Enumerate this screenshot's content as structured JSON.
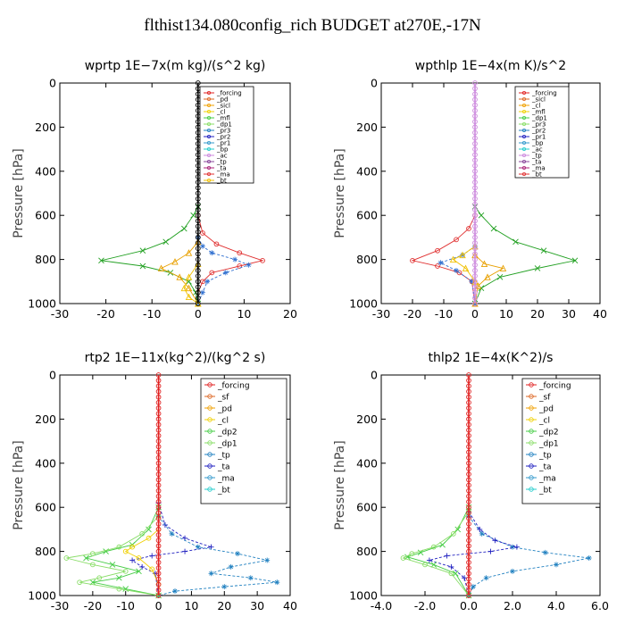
{
  "title": "flthist134.080config_rich  BUDGET at270E,-17N",
  "chart_data": [
    {
      "type": "line",
      "title": "wprtp   1E−7x(m kg)/(s^2 kg)",
      "ylabel": "Pressure [hPa]",
      "xlim": [
        -30,
        20
      ],
      "ylim": [
        1000,
        0
      ],
      "xticks": [
        "-30",
        "-20",
        "-10",
        "0",
        "10",
        "20"
      ],
      "yticks": [
        "0",
        "200",
        "400",
        "600",
        "800",
        "1000"
      ],
      "legend": [
        "_forcing",
        "_pd",
        "_sicl",
        "_cl",
        "_mfl",
        "_dp1",
        "_pr3",
        "_pr2",
        "_pr1",
        "_bp",
        "_ac",
        "_tp",
        "_ta",
        "_ma",
        "_bt"
      ],
      "series": [
        {
          "name": "_bp",
          "color": "#22a022",
          "marker": "x",
          "points": [
            [
              0,
              560
            ],
            [
              -1,
              600
            ],
            [
              -3,
              660
            ],
            [
              -7,
              720
            ],
            [
              -12,
              760
            ],
            [
              -21,
              805
            ],
            [
              -12,
              830
            ],
            [
              -6,
              860
            ],
            [
              -2,
              900
            ],
            [
              -0.5,
              950
            ],
            [
              0,
              1000
            ]
          ]
        },
        {
          "name": "_dp1",
          "color": "#e03030",
          "marker": "circle",
          "points": [
            [
              0,
              600
            ],
            [
              1,
              680
            ],
            [
              4,
              730
            ],
            [
              9,
              770
            ],
            [
              14,
              805
            ],
            [
              9,
              830
            ],
            [
              3,
              860
            ],
            [
              1,
              900
            ],
            [
              0,
              950
            ],
            [
              0,
              1000
            ]
          ]
        },
        {
          "name": "_tp",
          "color": "#3070d0",
          "marker": "star",
          "points": [
            [
              0,
              700
            ],
            [
              1,
              740
            ],
            [
              3,
              770
            ],
            [
              8,
              800
            ],
            [
              11,
              825
            ],
            [
              6,
              860
            ],
            [
              2,
              900
            ],
            [
              1,
              950
            ],
            [
              0,
              1000
            ]
          ]
        },
        {
          "name": "_pr2",
          "color": "#e8a000",
          "marker": "triangle",
          "points": [
            [
              0,
              720
            ],
            [
              -2,
              770
            ],
            [
              -5,
              810
            ],
            [
              -8,
              840
            ],
            [
              -4,
              880
            ],
            [
              -2,
              930
            ],
            [
              0,
              1000
            ]
          ]
        },
        {
          "name": "_cl",
          "color": "#f0c000",
          "marker": "triangle",
          "points": [
            [
              0,
              820
            ],
            [
              -2,
              880
            ],
            [
              -3,
              930
            ],
            [
              -2,
              970
            ],
            [
              0,
              1000
            ]
          ]
        },
        {
          "name": "_forcing",
          "color": "#000000",
          "marker": "circle",
          "points": [
            [
              0,
              0
            ],
            [
              0,
              1000
            ]
          ]
        }
      ]
    },
    {
      "type": "line",
      "title": "wpthlp   1E−4x(m K)/s^2",
      "ylabel": "Pressure [hPa]",
      "xlim": [
        -30,
        40
      ],
      "ylim": [
        1000,
        0
      ],
      "xticks": [
        "-30",
        "-20",
        "-10",
        "0",
        "10",
        "20",
        "30",
        "40"
      ],
      "yticks": [
        "0",
        "200",
        "400",
        "600",
        "800",
        "1000"
      ],
      "legend": [
        "_forcing",
        "_sicl",
        "_cl",
        "_mfl",
        "_dp1",
        "_pr3",
        "_pr2",
        "_pr1",
        "_bp",
        "_ac",
        "_tp",
        "_ta",
        "_ma",
        "_bt"
      ],
      "series": [
        {
          "name": "_bp",
          "color": "#22a022",
          "marker": "x",
          "points": [
            [
              0,
              560
            ],
            [
              2,
              600
            ],
            [
              6,
              660
            ],
            [
              13,
              720
            ],
            [
              22,
              760
            ],
            [
              32,
              805
            ],
            [
              20,
              840
            ],
            [
              8,
              880
            ],
            [
              2,
              930
            ],
            [
              0,
              1000
            ]
          ]
        },
        {
          "name": "_dp1",
          "color": "#e03030",
          "marker": "circle",
          "points": [
            [
              0,
              600
            ],
            [
              -2,
              660
            ],
            [
              -6,
              710
            ],
            [
              -12,
              760
            ],
            [
              -20,
              805
            ],
            [
              -12,
              830
            ],
            [
              -5,
              860
            ],
            [
              -1,
              900
            ],
            [
              0,
              1000
            ]
          ]
        },
        {
          "name": "_tp",
          "color": "#3070d0",
          "marker": "star",
          "points": [
            [
              0,
              740
            ],
            [
              -4,
              780
            ],
            [
              -11,
              815
            ],
            [
              -6,
              850
            ],
            [
              -1,
              900
            ],
            [
              0,
              1000
            ]
          ]
        },
        {
          "name": "_pr2",
          "color": "#e8a000",
          "marker": "triangle",
          "points": [
            [
              0,
              780
            ],
            [
              3,
              820
            ],
            [
              9,
              840
            ],
            [
              4,
              880
            ],
            [
              1,
              920
            ],
            [
              0,
              1000
            ]
          ]
        },
        {
          "name": "_cl",
          "color": "#f0c000",
          "marker": "triangle",
          "points": [
            [
              0,
              740
            ],
            [
              -4,
              780
            ],
            [
              -7,
              800
            ],
            [
              -3,
              840
            ],
            [
              0,
              900
            ]
          ]
        },
        {
          "name": "_forcing",
          "color": "#cc88dd",
          "marker": "circle",
          "points": [
            [
              0,
              0
            ],
            [
              0,
              1000
            ]
          ]
        }
      ]
    },
    {
      "type": "line",
      "title": "rtp2   1E−11x(kg^2)/(kg^2 s)",
      "ylabel": "Pressure [hPa]",
      "xlim": [
        -30,
        40
      ],
      "ylim": [
        1000,
        0
      ],
      "xticks": [
        "-30",
        "-20",
        "-10",
        "0",
        "10",
        "20",
        "30",
        "40"
      ],
      "yticks": [
        "0",
        "200",
        "400",
        "600",
        "800",
        "1000"
      ],
      "legend": [
        "_forcing",
        "_sf",
        "_pd",
        "_cl",
        "_dp2",
        "_dp1",
        "_tp",
        "_ta",
        "_ma",
        "_bt"
      ],
      "series": [
        {
          "name": "_ta",
          "color": "#2020c0",
          "marker": "plus",
          "points": [
            [
              0,
              580
            ],
            [
              2,
              680
            ],
            [
              8,
              740
            ],
            [
              16,
              780
            ],
            [
              8,
              800
            ],
            [
              -2,
              820
            ],
            [
              -8,
              840
            ],
            [
              -5,
              870
            ],
            [
              -1,
              900
            ],
            [
              0,
              1000
            ]
          ]
        },
        {
          "name": "_tp",
          "color": "#2080c0",
          "marker": "star",
          "points": [
            [
              0,
              640
            ],
            [
              4,
              720
            ],
            [
              12,
              780
            ],
            [
              24,
              810
            ],
            [
              33,
              840
            ],
            [
              22,
              870
            ],
            [
              16,
              900
            ],
            [
              28,
              920
            ],
            [
              36,
              940
            ],
            [
              20,
              960
            ],
            [
              5,
              980
            ],
            [
              0,
              1000
            ]
          ]
        },
        {
          "name": "_dp1",
          "color": "#44cc44",
          "marker": "x",
          "points": [
            [
              0,
              600
            ],
            [
              -3,
              700
            ],
            [
              -8,
              770
            ],
            [
              -16,
              800
            ],
            [
              -22,
              830
            ],
            [
              -14,
              860
            ],
            [
              -6,
              890
            ],
            [
              -12,
              920
            ],
            [
              -20,
              940
            ],
            [
              -10,
              970
            ],
            [
              0,
              1000
            ]
          ]
        },
        {
          "name": "_dp2",
          "color": "#88dd66",
          "marker": "circle",
          "points": [
            [
              0,
              640
            ],
            [
              -5,
              720
            ],
            [
              -12,
              780
            ],
            [
              -20,
              810
            ],
            [
              -28,
              830
            ],
            [
              -20,
              860
            ],
            [
              -10,
              890
            ],
            [
              -18,
              920
            ],
            [
              -24,
              940
            ],
            [
              -12,
              970
            ],
            [
              0,
              1000
            ]
          ]
        },
        {
          "name": "_cl",
          "color": "#f0d000",
          "marker": "circle",
          "points": [
            [
              0,
              700
            ],
            [
              -3,
              740
            ],
            [
              -8,
              780
            ],
            [
              -10,
              800
            ],
            [
              -6,
              830
            ],
            [
              -2,
              880
            ],
            [
              0,
              950
            ]
          ]
        },
        {
          "name": "_forcing",
          "color": "#e02020",
          "marker": "circle",
          "points": [
            [
              0,
              0
            ],
            [
              0,
              1000
            ]
          ]
        }
      ]
    },
    {
      "type": "line",
      "title": "thlp2   1E−4x(K^2)/s",
      "ylabel": "Pressure [hPa]",
      "xlim": [
        -4,
        6
      ],
      "ylim": [
        1000,
        0
      ],
      "xticks": [
        "-4.0",
        "-2.0",
        "0.0",
        "2.0",
        "4.0",
        "6.0"
      ],
      "yticks": [
        "0",
        "200",
        "400",
        "600",
        "800",
        "1000"
      ],
      "legend": [
        "_forcing",
        "_sf",
        "_pd",
        "_cl",
        "_dp2",
        "_dp1",
        "_tp",
        "_ta",
        "_ma",
        "_bt"
      ],
      "series": [
        {
          "name": "_tp",
          "color": "#2080c0",
          "marker": "star",
          "points": [
            [
              0,
              640
            ],
            [
              0.6,
              720
            ],
            [
              2,
              780
            ],
            [
              3.5,
              805
            ],
            [
              5.5,
              830
            ],
            [
              4,
              860
            ],
            [
              2,
              890
            ],
            [
              0.8,
              920
            ],
            [
              0.2,
              960
            ],
            [
              0,
              1000
            ]
          ]
        },
        {
          "name": "_ta",
          "color": "#2020c0",
          "marker": "plus",
          "points": [
            [
              0,
              620
            ],
            [
              0.5,
              700
            ],
            [
              1.2,
              750
            ],
            [
              2.2,
              780
            ],
            [
              1,
              800
            ],
            [
              -1,
              820
            ],
            [
              -1.8,
              840
            ],
            [
              -0.8,
              870
            ],
            [
              -0.2,
              920
            ],
            [
              0,
              1000
            ]
          ]
        },
        {
          "name": "_dp1",
          "color": "#44cc44",
          "marker": "x",
          "points": [
            [
              0,
              600
            ],
            [
              -0.5,
              700
            ],
            [
              -1.2,
              770
            ],
            [
              -2.2,
              805
            ],
            [
              -2.8,
              825
            ],
            [
              -1.6,
              860
            ],
            [
              -0.6,
              900
            ],
            [
              0,
              1000
            ]
          ]
        },
        {
          "name": "_dp2",
          "color": "#88dd66",
          "marker": "circle",
          "points": [
            [
              0,
              620
            ],
            [
              -0.7,
              720
            ],
            [
              -1.6,
              780
            ],
            [
              -2.6,
              810
            ],
            [
              -3,
              830
            ],
            [
              -2,
              860
            ],
            [
              -0.8,
              900
            ],
            [
              0,
              1000
            ]
          ]
        },
        {
          "name": "_forcing",
          "color": "#e02020",
          "marker": "circle",
          "points": [
            [
              0,
              0
            ],
            [
              0,
              1000
            ]
          ]
        }
      ]
    }
  ]
}
